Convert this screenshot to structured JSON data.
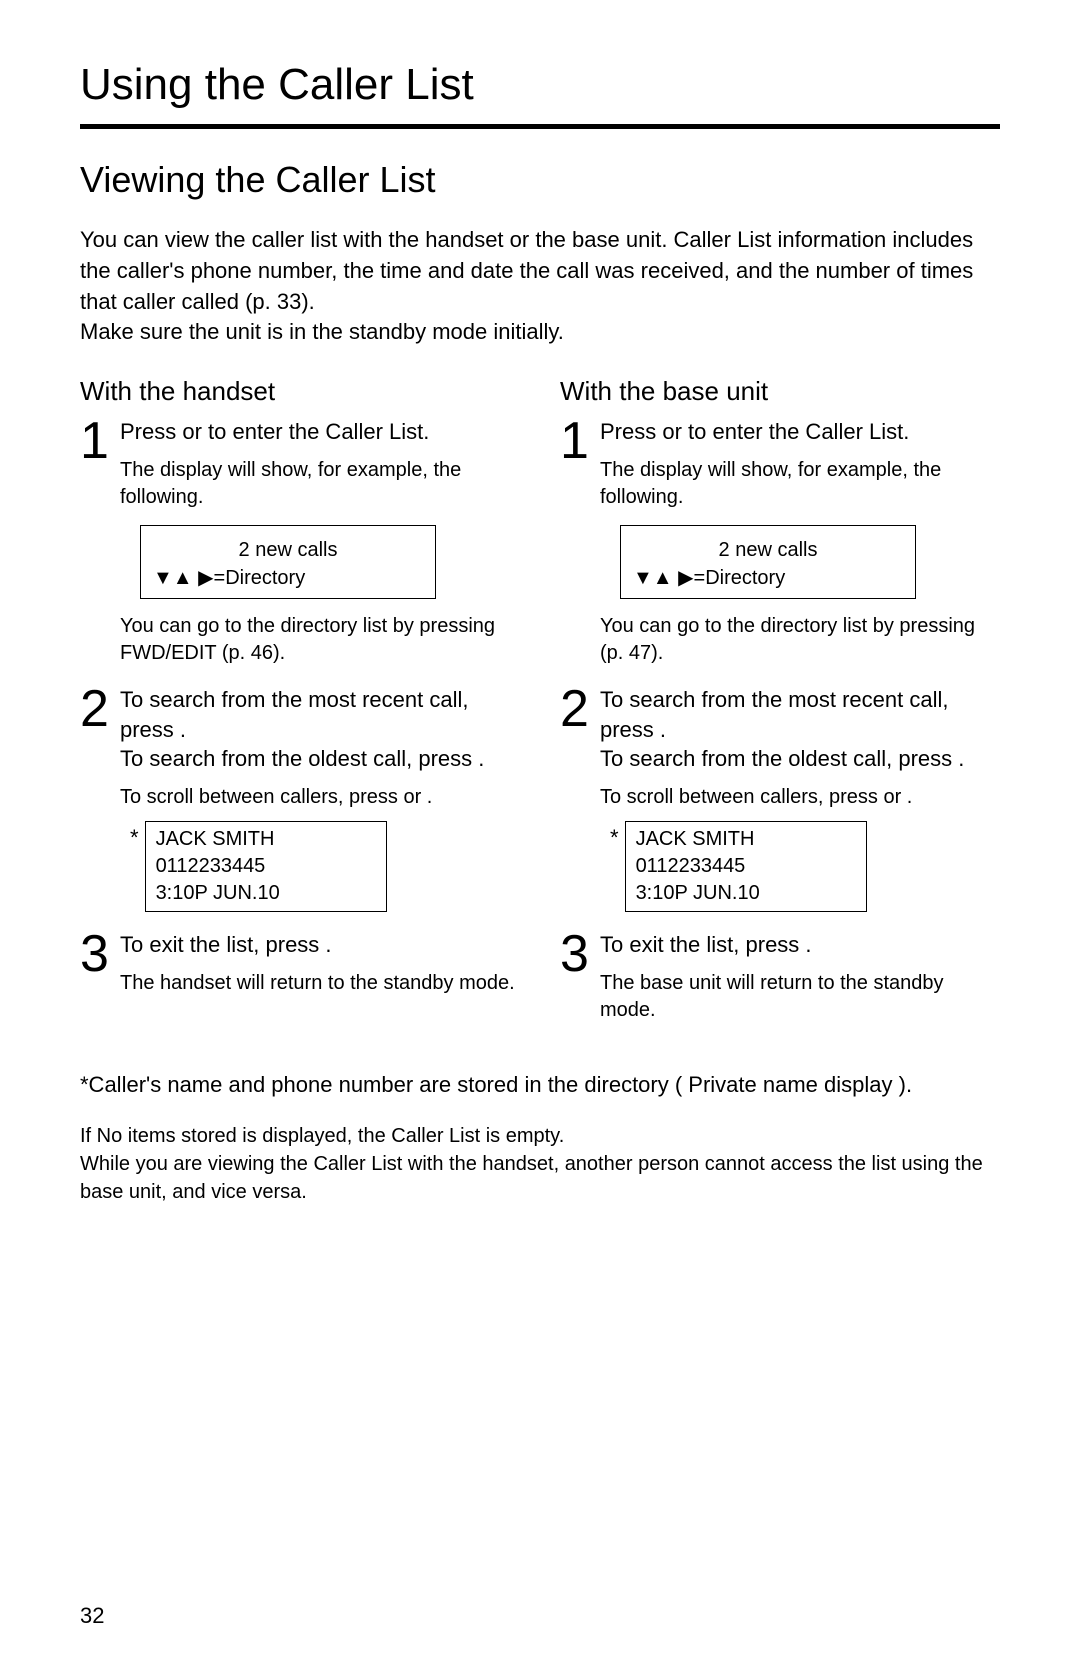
{
  "page_number": "32",
  "chapter_title": "Using the Caller List",
  "section_title": "Viewing the Caller List",
  "intro_p1": "You can view the caller list with the handset or the base unit. Caller List information includes the caller's phone number, the time and date the call was received, and the number of times that caller called (p. 33).",
  "intro_p2": "Make sure the unit is in the standby mode initially.",
  "left": {
    "title": "With the handset",
    "step1_num": "1",
    "step1_text": "Press      or      to enter the Caller List.",
    "step1_sub": "The display will show, for example, the following.",
    "disp1_line1": "2 new calls",
    "disp1_line2": "▼▲     ▶=Directory",
    "step1_after": "You can go to the directory list by pressing FWD/EDIT (p. 46).",
    "step2_num": "2",
    "step2_line1": "To search from the most recent call, press      .",
    "step2_line2": "To search from the oldest call, press      .",
    "step2_sub": "To scroll between callers, press      or      .",
    "caller_name": "JACK SMITH",
    "caller_number": "0112233445",
    "caller_time": " 3:10P JUN.10",
    "step3_num": "3",
    "step3_text": "To exit the list, press                              .",
    "step3_sub": "The handset will return to the standby mode."
  },
  "right": {
    "title": "With the base unit",
    "step1_num": "1",
    "step1_text": "Press      or      to enter the Caller List.",
    "step1_sub": "The display will show, for example, the following.",
    "disp1_line1": "2 new calls",
    "disp1_line2": "▼▲     ▶=Directory",
    "step1_after": "You can go to the directory list by pressing        (p. 47).",
    "step2_num": "2",
    "step2_line1": "To search from the most recent call, press      .",
    "step2_line2": "To search from the oldest call, press      .",
    "step2_sub": "To scroll between callers, press      or      .",
    "caller_name": "JACK SMITH",
    "caller_number": "0112233445",
    "caller_time": " 3:10P JUN.10",
    "step3_num": "3",
    "step3_text": "To exit the list, press                     .",
    "step3_sub": "The base unit will return to the standby mode."
  },
  "footnote": "*Caller's name and phone number are stored in the directory (   Private name display   ).",
  "note1": "If  No items stored        is displayed, the Caller List is empty.",
  "note2": "While you are viewing the Caller List with the handset, another person cannot access the list using the base unit, and vice versa.",
  "star": "*",
  "colors": {
    "text": "#000000",
    "background": "#ffffff",
    "rule": "#000000",
    "border": "#000000"
  }
}
